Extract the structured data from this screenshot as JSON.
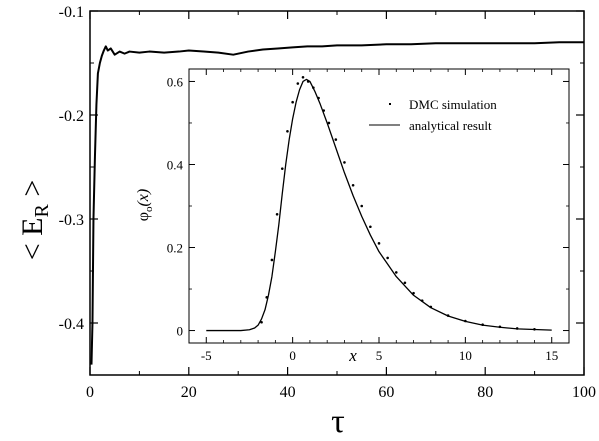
{
  "chart_data": [
    {
      "type": "line",
      "role": "main",
      "xlabel": "τ",
      "ylabel": "< E",
      "ylabel_subscript": "R",
      "ylabel_suffix": " >",
      "xlim": [
        0,
        100
      ],
      "ylim": [
        -0.45,
        -0.1
      ],
      "xticks": [
        0,
        20,
        40,
        60,
        80,
        100
      ],
      "xtick_labels": [
        "0",
        "20",
        "40",
        "60",
        "80",
        "100"
      ],
      "yticks": [
        -0.1,
        -0.2,
        -0.3,
        -0.4
      ],
      "ytick_labels": [
        "-0.1",
        "-0.2",
        "-0.3",
        "-0.4"
      ],
      "grid": false,
      "series": [
        {
          "x": [
            0.3,
            0.5,
            0.7,
            1.0,
            1.3,
            1.6,
            2.0,
            2.4,
            2.8,
            3.2,
            3.6,
            4.2,
            5,
            6,
            7,
            8,
            10,
            12,
            15,
            18,
            20,
            23,
            26,
            29,
            32,
            35,
            38,
            41,
            44,
            47,
            50,
            55,
            60,
            65,
            70,
            75,
            80,
            85,
            90,
            95,
            100
          ],
          "y": [
            -0.44,
            -0.4,
            -0.3,
            -0.24,
            -0.19,
            -0.16,
            -0.15,
            -0.143,
            -0.138,
            -0.134,
            -0.138,
            -0.136,
            -0.142,
            -0.139,
            -0.141,
            -0.139,
            -0.14,
            -0.139,
            -0.14,
            -0.139,
            -0.138,
            -0.139,
            -0.14,
            -0.142,
            -0.139,
            -0.137,
            -0.136,
            -0.135,
            -0.134,
            -0.134,
            -0.133,
            -0.133,
            -0.132,
            -0.132,
            -0.131,
            -0.131,
            -0.131,
            -0.131,
            -0.131,
            -0.13,
            -0.13
          ]
        }
      ]
    },
    {
      "type": "line",
      "role": "inset",
      "xlabel": "x",
      "ylabel": "φ",
      "ylabel_subscript": "o",
      "ylabel_suffix": "(x)",
      "xlim": [
        -6,
        16
      ],
      "ylim": [
        -0.03,
        0.63
      ],
      "xticks": [
        -5,
        0,
        5,
        10,
        15
      ],
      "xtick_labels": [
        "-5",
        "0",
        "5",
        "10",
        "15"
      ],
      "yticks": [
        0,
        0.2,
        0.4,
        0.6
      ],
      "ytick_labels": [
        "0",
        "0.2",
        "0.4",
        "0.6"
      ],
      "grid": false,
      "legend_position": "top-right",
      "series": [
        {
          "name": "DMC simulation",
          "style": "dots",
          "x": [
            -1.8,
            -1.5,
            -1.2,
            -0.9,
            -0.6,
            -0.3,
            0.0,
            0.3,
            0.6,
            0.9,
            1.2,
            1.5,
            1.8,
            2.1,
            2.5,
            3.0,
            3.5,
            4.0,
            4.5,
            5.0,
            5.5,
            6.0,
            6.5,
            7.0,
            7.5,
            8.0,
            9.0,
            10.0,
            11.0,
            12.0,
            13.0,
            14.0
          ],
          "y": [
            0.02,
            0.08,
            0.17,
            0.28,
            0.39,
            0.48,
            0.55,
            0.595,
            0.61,
            0.6,
            0.585,
            0.56,
            0.53,
            0.5,
            0.46,
            0.405,
            0.35,
            0.3,
            0.25,
            0.21,
            0.175,
            0.14,
            0.115,
            0.09,
            0.072,
            0.057,
            0.036,
            0.023,
            0.014,
            0.009,
            0.005,
            0.003
          ]
        },
        {
          "name": "analytical result",
          "style": "line",
          "x": [
            -5,
            -3,
            -2.5,
            -2.2,
            -2.0,
            -1.8,
            -1.6,
            -1.4,
            -1.2,
            -1.0,
            -0.8,
            -0.6,
            -0.4,
            -0.2,
            0.0,
            0.2,
            0.4,
            0.6,
            0.8,
            1.0,
            1.3,
            1.6,
            2.0,
            2.5,
            3.0,
            3.5,
            4.0,
            4.5,
            5.0,
            5.5,
            6.0,
            7.0,
            8.0,
            9.0,
            10.0,
            11.0,
            12.0,
            13.0,
            15.0
          ],
          "y": [
            0.0,
            0.0,
            0.002,
            0.006,
            0.013,
            0.028,
            0.05,
            0.085,
            0.13,
            0.19,
            0.255,
            0.33,
            0.4,
            0.46,
            0.51,
            0.55,
            0.58,
            0.6,
            0.605,
            0.6,
            0.575,
            0.545,
            0.5,
            0.44,
            0.38,
            0.325,
            0.275,
            0.23,
            0.19,
            0.16,
            0.13,
            0.085,
            0.055,
            0.035,
            0.022,
            0.013,
            0.008,
            0.004,
            0.001
          ]
        }
      ]
    }
  ]
}
